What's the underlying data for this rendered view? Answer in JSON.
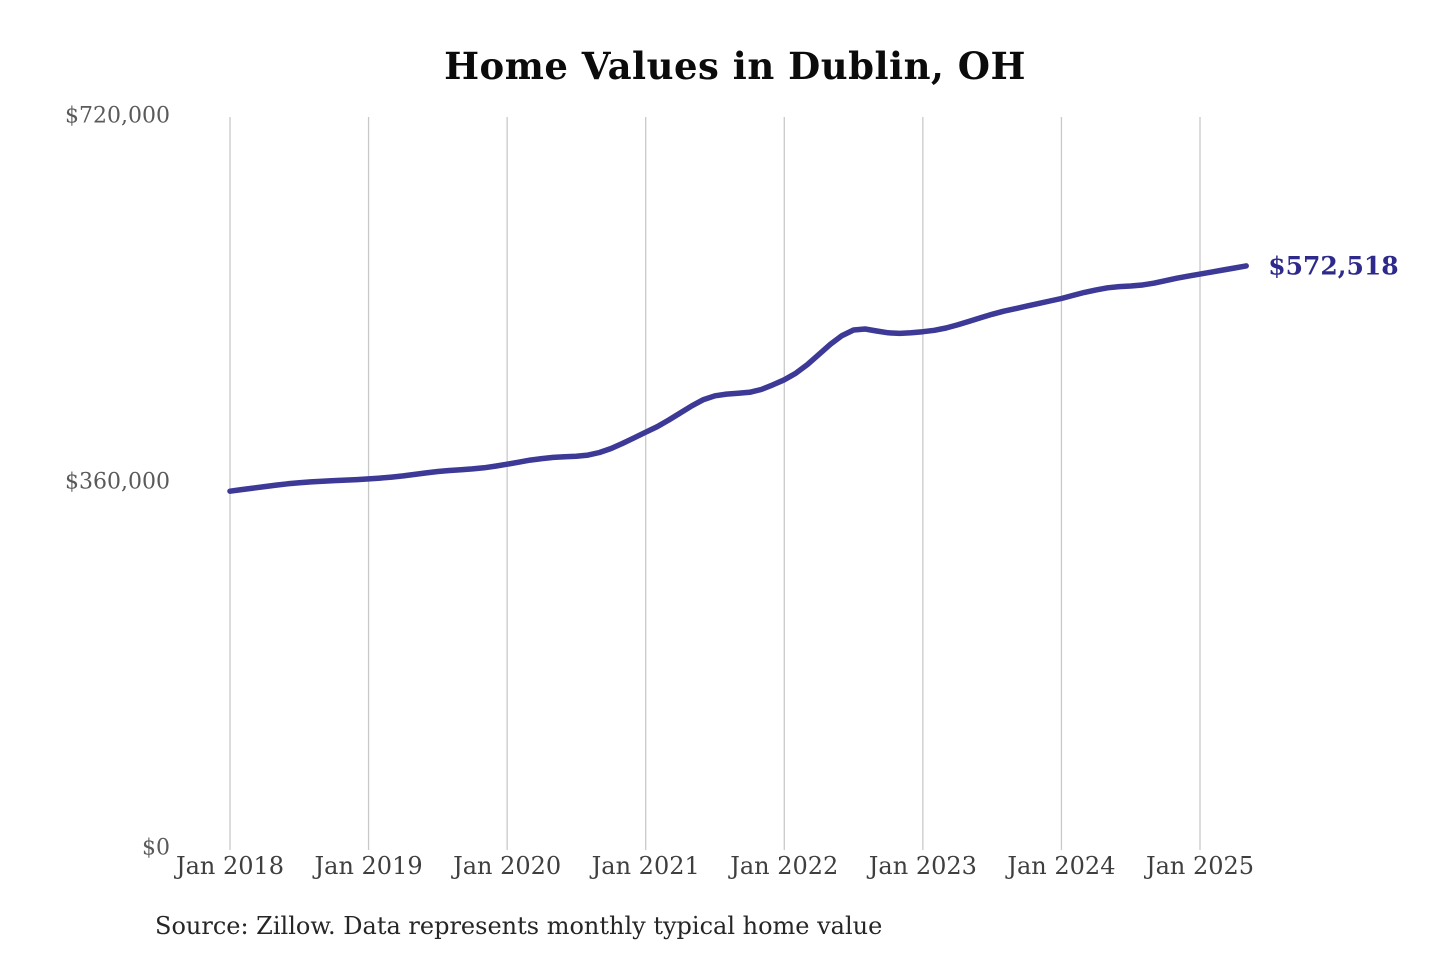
{
  "page": {
    "background": "#ffffff"
  },
  "chart_data": {
    "type": "line",
    "title": "Home Values in Dublin, OH",
    "source_note": "Source: Zillow. Data represents monthly typical home value",
    "end_label": "$572,518",
    "latest_value": 572518,
    "series_name": "Monthly typical home value",
    "x_start": "2018-01",
    "frequency": "monthly",
    "xtick_labels": [
      "Jan 2018",
      "Jan 2019",
      "Jan 2020",
      "Jan 2021",
      "Jan 2022",
      "Jan 2023",
      "Jan 2024",
      "Jan 2025"
    ],
    "ytick_labels": [
      "$0",
      "$360,000",
      "$720,000"
    ],
    "ytick_values": [
      0,
      360000,
      720000
    ],
    "ylim": [
      0,
      720000
    ],
    "grid": "vertical-only",
    "legend": "none",
    "colors": {
      "line": "#3d3997",
      "end_label": "#2e2a8b",
      "gridline": "#c9c9c9",
      "y_labels": "#5a5a5a",
      "x_labels": "#3f3f3f",
      "title": "#0b0b0b",
      "source": "#262626"
    },
    "values": [
      351000,
      352500,
      354000,
      355500,
      357000,
      358200,
      359200,
      360100,
      360800,
      361400,
      361900,
      362400,
      363000,
      363800,
      364800,
      366000,
      367500,
      369000,
      370300,
      371300,
      372100,
      372900,
      374000,
      375600,
      377500,
      379500,
      381500,
      383000,
      384200,
      384900,
      385400,
      386500,
      389000,
      393000,
      398000,
      403500,
      409000,
      414500,
      421000,
      428000,
      435000,
      441000,
      444800,
      446500,
      447200,
      448200,
      451000,
      455500,
      460500,
      467000,
      475500,
      485500,
      495500,
      504000,
      509500,
      510500,
      508500,
      506800,
      506200,
      506800,
      507800,
      509200,
      511500,
      514500,
      518000,
      521500,
      525000,
      528000,
      530500,
      533000,
      535500,
      538000,
      540500,
      543500,
      546500,
      549000,
      551000,
      552200,
      552800,
      553800,
      555500,
      558000,
      560500,
      562500,
      564500,
      566500,
      568500,
      570500,
      572518
    ]
  }
}
